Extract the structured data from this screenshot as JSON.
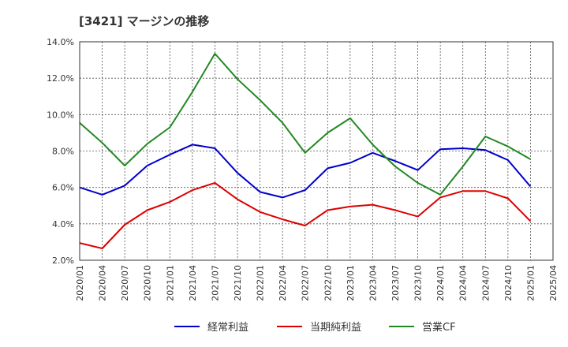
{
  "chart_data": {
    "type": "line",
    "title": "[3421]  マージンの推移",
    "x": [
      "2020/01",
      "2020/04",
      "2020/07",
      "2020/10",
      "2021/01",
      "2021/04",
      "2021/07",
      "2021/10",
      "2022/01",
      "2022/04",
      "2022/07",
      "2022/10",
      "2023/01",
      "2023/04",
      "2023/07",
      "2023/10",
      "2024/01",
      "2024/04",
      "2024/07",
      "2024/10",
      "2025/01",
      "2025/04"
    ],
    "ylim": [
      2.0,
      14.0
    ],
    "yticks": [
      "2.0%",
      "4.0%",
      "6.0%",
      "8.0%",
      "10.0%",
      "12.0%",
      "14.0%"
    ],
    "grid": true,
    "legend_position": "bottom",
    "series": [
      {
        "name": "経常利益",
        "color": "#0000cc",
        "values": [
          6.0,
          5.6,
          6.1,
          7.2,
          7.8,
          8.35,
          8.15,
          6.8,
          5.75,
          5.45,
          5.85,
          7.05,
          7.35,
          7.9,
          7.45,
          6.95,
          8.1,
          8.15,
          8.05,
          7.5,
          6.05,
          null
        ]
      },
      {
        "name": "当期純利益",
        "color": "#dd0000",
        "values": [
          2.95,
          2.65,
          3.95,
          4.75,
          5.2,
          5.85,
          6.25,
          5.35,
          4.65,
          4.25,
          3.9,
          4.75,
          4.95,
          5.05,
          4.75,
          4.4,
          5.45,
          5.8,
          5.8,
          5.4,
          4.15,
          null
        ]
      },
      {
        "name": "営業CF",
        "color": "#228822",
        "values": [
          9.55,
          8.45,
          7.2,
          8.4,
          9.3,
          11.25,
          13.35,
          11.95,
          10.8,
          9.55,
          7.9,
          9.0,
          9.8,
          8.35,
          7.15,
          6.25,
          5.6,
          7.15,
          8.8,
          8.25,
          7.55,
          null
        ]
      }
    ]
  }
}
